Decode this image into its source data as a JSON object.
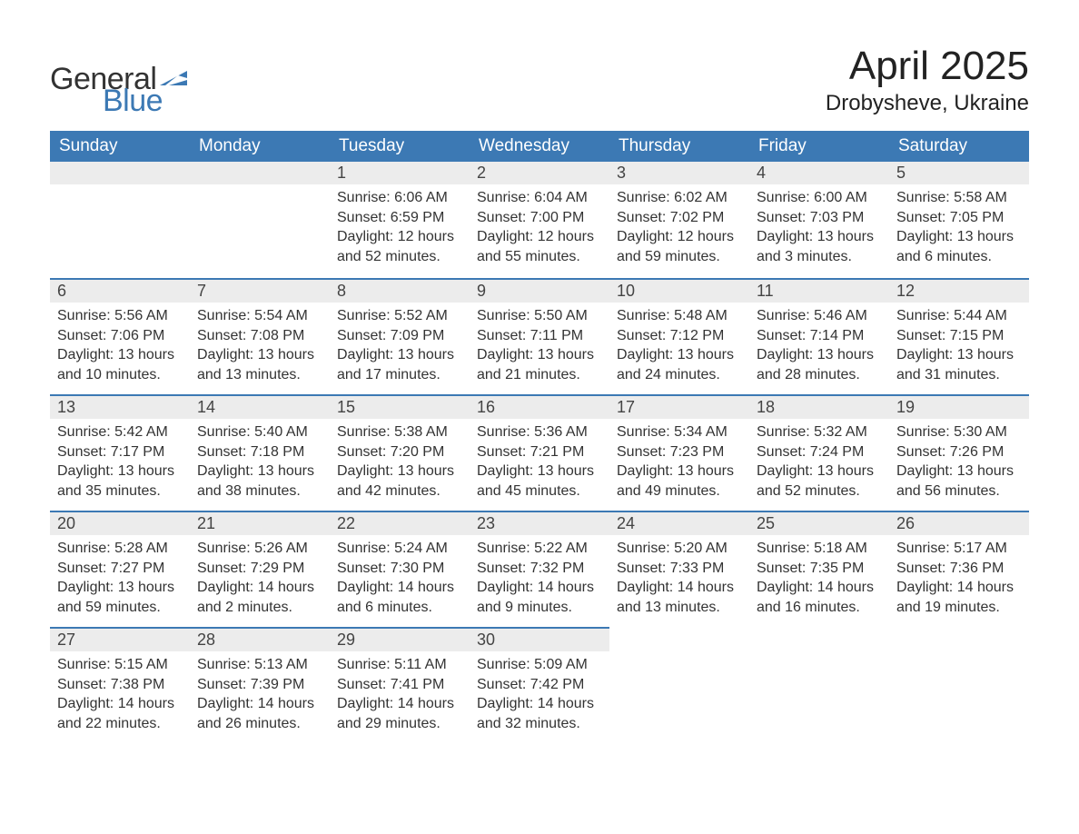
{
  "logo": {
    "general": "General",
    "blue": "Blue",
    "flag_color": "#3c79b4"
  },
  "title": "April 2025",
  "location": "Drobysheve, Ukraine",
  "colors": {
    "header_bg": "#3c79b4",
    "header_text": "#ffffff",
    "daynum_bg": "#ececec",
    "border_top": "#3c79b4",
    "body_text": "#333333",
    "page_bg": "#ffffff"
  },
  "typography": {
    "title_fontsize_pt": 33,
    "location_fontsize_pt": 18,
    "dayhead_fontsize_pt": 14,
    "daynum_fontsize_pt": 14,
    "body_fontsize_pt": 12,
    "font_family": "Segoe UI / Arial"
  },
  "layout": {
    "columns": 7,
    "rows": 5,
    "col_width_pct": 14.28
  },
  "day_headers": [
    "Sunday",
    "Monday",
    "Tuesday",
    "Wednesday",
    "Thursday",
    "Friday",
    "Saturday"
  ],
  "weeks": [
    [
      {
        "empty": true
      },
      {
        "empty": true
      },
      {
        "num": "1",
        "sunrise": "Sunrise: 6:06 AM",
        "sunset": "Sunset: 6:59 PM",
        "daylight": "Daylight: 12 hours and 52 minutes."
      },
      {
        "num": "2",
        "sunrise": "Sunrise: 6:04 AM",
        "sunset": "Sunset: 7:00 PM",
        "daylight": "Daylight: 12 hours and 55 minutes."
      },
      {
        "num": "3",
        "sunrise": "Sunrise: 6:02 AM",
        "sunset": "Sunset: 7:02 PM",
        "daylight": "Daylight: 12 hours and 59 minutes."
      },
      {
        "num": "4",
        "sunrise": "Sunrise: 6:00 AM",
        "sunset": "Sunset: 7:03 PM",
        "daylight": "Daylight: 13 hours and 3 minutes."
      },
      {
        "num": "5",
        "sunrise": "Sunrise: 5:58 AM",
        "sunset": "Sunset: 7:05 PM",
        "daylight": "Daylight: 13 hours and 6 minutes."
      }
    ],
    [
      {
        "num": "6",
        "sunrise": "Sunrise: 5:56 AM",
        "sunset": "Sunset: 7:06 PM",
        "daylight": "Daylight: 13 hours and 10 minutes."
      },
      {
        "num": "7",
        "sunrise": "Sunrise: 5:54 AM",
        "sunset": "Sunset: 7:08 PM",
        "daylight": "Daylight: 13 hours and 13 minutes."
      },
      {
        "num": "8",
        "sunrise": "Sunrise: 5:52 AM",
        "sunset": "Sunset: 7:09 PM",
        "daylight": "Daylight: 13 hours and 17 minutes."
      },
      {
        "num": "9",
        "sunrise": "Sunrise: 5:50 AM",
        "sunset": "Sunset: 7:11 PM",
        "daylight": "Daylight: 13 hours and 21 minutes."
      },
      {
        "num": "10",
        "sunrise": "Sunrise: 5:48 AM",
        "sunset": "Sunset: 7:12 PM",
        "daylight": "Daylight: 13 hours and 24 minutes."
      },
      {
        "num": "11",
        "sunrise": "Sunrise: 5:46 AM",
        "sunset": "Sunset: 7:14 PM",
        "daylight": "Daylight: 13 hours and 28 minutes."
      },
      {
        "num": "12",
        "sunrise": "Sunrise: 5:44 AM",
        "sunset": "Sunset: 7:15 PM",
        "daylight": "Daylight: 13 hours and 31 minutes."
      }
    ],
    [
      {
        "num": "13",
        "sunrise": "Sunrise: 5:42 AM",
        "sunset": "Sunset: 7:17 PM",
        "daylight": "Daylight: 13 hours and 35 minutes."
      },
      {
        "num": "14",
        "sunrise": "Sunrise: 5:40 AM",
        "sunset": "Sunset: 7:18 PM",
        "daylight": "Daylight: 13 hours and 38 minutes."
      },
      {
        "num": "15",
        "sunrise": "Sunrise: 5:38 AM",
        "sunset": "Sunset: 7:20 PM",
        "daylight": "Daylight: 13 hours and 42 minutes."
      },
      {
        "num": "16",
        "sunrise": "Sunrise: 5:36 AM",
        "sunset": "Sunset: 7:21 PM",
        "daylight": "Daylight: 13 hours and 45 minutes."
      },
      {
        "num": "17",
        "sunrise": "Sunrise: 5:34 AM",
        "sunset": "Sunset: 7:23 PM",
        "daylight": "Daylight: 13 hours and 49 minutes."
      },
      {
        "num": "18",
        "sunrise": "Sunrise: 5:32 AM",
        "sunset": "Sunset: 7:24 PM",
        "daylight": "Daylight: 13 hours and 52 minutes."
      },
      {
        "num": "19",
        "sunrise": "Sunrise: 5:30 AM",
        "sunset": "Sunset: 7:26 PM",
        "daylight": "Daylight: 13 hours and 56 minutes."
      }
    ],
    [
      {
        "num": "20",
        "sunrise": "Sunrise: 5:28 AM",
        "sunset": "Sunset: 7:27 PM",
        "daylight": "Daylight: 13 hours and 59 minutes."
      },
      {
        "num": "21",
        "sunrise": "Sunrise: 5:26 AM",
        "sunset": "Sunset: 7:29 PM",
        "daylight": "Daylight: 14 hours and 2 minutes."
      },
      {
        "num": "22",
        "sunrise": "Sunrise: 5:24 AM",
        "sunset": "Sunset: 7:30 PM",
        "daylight": "Daylight: 14 hours and 6 minutes."
      },
      {
        "num": "23",
        "sunrise": "Sunrise: 5:22 AM",
        "sunset": "Sunset: 7:32 PM",
        "daylight": "Daylight: 14 hours and 9 minutes."
      },
      {
        "num": "24",
        "sunrise": "Sunrise: 5:20 AM",
        "sunset": "Sunset: 7:33 PM",
        "daylight": "Daylight: 14 hours and 13 minutes."
      },
      {
        "num": "25",
        "sunrise": "Sunrise: 5:18 AM",
        "sunset": "Sunset: 7:35 PM",
        "daylight": "Daylight: 14 hours and 16 minutes."
      },
      {
        "num": "26",
        "sunrise": "Sunrise: 5:17 AM",
        "sunset": "Sunset: 7:36 PM",
        "daylight": "Daylight: 14 hours and 19 minutes."
      }
    ],
    [
      {
        "num": "27",
        "sunrise": "Sunrise: 5:15 AM",
        "sunset": "Sunset: 7:38 PM",
        "daylight": "Daylight: 14 hours and 22 minutes."
      },
      {
        "num": "28",
        "sunrise": "Sunrise: 5:13 AM",
        "sunset": "Sunset: 7:39 PM",
        "daylight": "Daylight: 14 hours and 26 minutes."
      },
      {
        "num": "29",
        "sunrise": "Sunrise: 5:11 AM",
        "sunset": "Sunset: 7:41 PM",
        "daylight": "Daylight: 14 hours and 29 minutes."
      },
      {
        "num": "30",
        "sunrise": "Sunrise: 5:09 AM",
        "sunset": "Sunset: 7:42 PM",
        "daylight": "Daylight: 14 hours and 32 minutes."
      },
      {
        "trailing_empty": true
      },
      {
        "trailing_empty": true
      },
      {
        "trailing_empty": true
      }
    ]
  ]
}
